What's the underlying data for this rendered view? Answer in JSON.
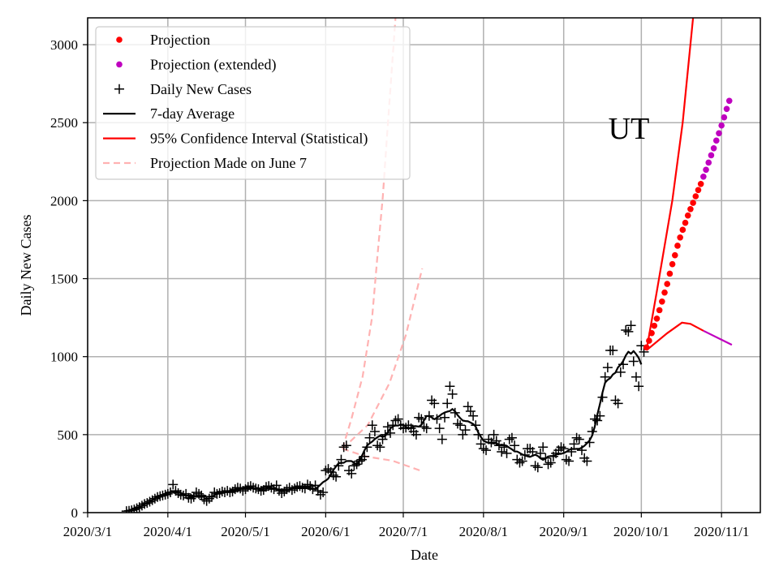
{
  "chart_data": {
    "type": "line",
    "region_label": "UT",
    "xlabel": "Date",
    "ylabel": "Daily New Cases",
    "x_axis": {
      "start_date": "2020-03-01",
      "end_day_offset": 260
    },
    "ylim": [
      0,
      3172
    ],
    "grid": true,
    "legend_placement": "top-left",
    "x_ticks": [
      {
        "label": "2020/3/1",
        "day": 0
      },
      {
        "label": "2020/4/1",
        "day": 31
      },
      {
        "label": "2020/5/1",
        "day": 61
      },
      {
        "label": "2020/6/1",
        "day": 92
      },
      {
        "label": "2020/7/1",
        "day": 122
      },
      {
        "label": "2020/8/1",
        "day": 153
      },
      {
        "label": "2020/9/1",
        "day": 184
      },
      {
        "label": "2020/10/1",
        "day": 214
      },
      {
        "label": "2020/11/1",
        "day": 245
      }
    ],
    "y_ticks": [
      {
        "label": "0",
        "value": 0
      },
      {
        "label": "500",
        "value": 500
      },
      {
        "label": "1000",
        "value": 1000
      },
      {
        "label": "1500",
        "value": 1500
      },
      {
        "label": "2000",
        "value": 2000
      },
      {
        "label": "2500",
        "value": 2500
      },
      {
        "label": "3000",
        "value": 3000
      }
    ],
    "legend": [
      {
        "label": "Projection",
        "kind": "dot",
        "color": "#ff0000"
      },
      {
        "label": "Projection (extended)",
        "kind": "dot",
        "color": "#bf00bf"
      },
      {
        "label": "Daily New Cases",
        "kind": "plus",
        "color": "#000000"
      },
      {
        "label": "7-day Average",
        "kind": "line",
        "color": "#000000"
      },
      {
        "label": "95% Confidence Interval (Statistical)",
        "kind": "line",
        "color": "#ff0000"
      },
      {
        "label": "Projection Made on June 7",
        "kind": "dash",
        "color": "#ffb2b2"
      }
    ],
    "daily_cases": {
      "first_day": 15,
      "values": [
        10,
        12,
        15,
        20,
        28,
        35,
        45,
        55,
        62,
        70,
        80,
        90,
        100,
        105,
        110,
        115,
        120,
        130,
        180,
        140,
        125,
        115,
        110,
        120,
        95,
        90,
        100,
        130,
        120,
        110,
        85,
        75,
        90,
        100,
        130,
        120,
        125,
        135,
        130,
        140,
        130,
        135,
        150,
        160,
        155,
        140,
        150,
        165,
        170,
        160,
        155,
        150,
        140,
        145,
        165,
        170,
        160,
        150,
        175,
        140,
        125,
        135,
        150,
        160,
        145,
        155,
        165,
        170,
        160,
        155,
        180,
        170,
        150,
        175,
        140,
        115,
        130,
        270,
        280,
        260,
        240,
        230,
        300,
        340,
        420,
        430,
        270,
        250,
        300,
        310,
        330,
        340,
        360,
        420,
        480,
        560,
        520,
        430,
        420,
        470,
        500,
        550,
        510,
        560,
        590,
        600,
        560,
        540,
        545,
        560,
        540,
        520,
        500,
        610,
        600,
        550,
        540,
        620,
        720,
        700,
        600,
        540,
        470,
        610,
        700,
        810,
        760,
        640,
        570,
        560,
        500,
        530,
        680,
        650,
        620,
        560,
        500,
        440,
        410,
        400,
        470,
        450,
        500,
        460,
        430,
        390,
        420,
        380,
        470,
        480,
        430,
        340,
        320,
        330,
        370,
        410,
        410,
        390,
        300,
        290,
        380,
        420,
        350,
        310,
        320,
        360,
        380,
        400,
        420,
        410,
        340,
        330,
        390,
        440,
        480,
        470,
        400,
        350,
        330,
        450,
        520,
        600,
        590,
        620,
        740,
        870,
        930,
        1040,
        1040,
        720,
        700,
        900,
        950,
        1170,
        1160,
        1200,
        970,
        870,
        810,
        1070,
        1030
      ]
    },
    "projection": {
      "first_day": 216,
      "values": [
        1059,
        1102,
        1151,
        1198,
        1244,
        1298,
        1353,
        1411,
        1466,
        1532,
        1593,
        1650,
        1711,
        1764,
        1813,
        1858,
        1905,
        1946,
        1986,
        2028,
        2068,
        2107
      ],
      "color": "#ff0000"
    },
    "projection_extended": {
      "first_day": 238,
      "values": [
        2154,
        2198,
        2244,
        2291,
        2336,
        2385,
        2432,
        2482,
        2534,
        2588,
        2640
      ],
      "color": "#bf00bf"
    },
    "ci_upper": {
      "days": [
        216,
        220,
        226,
        230,
        234,
        236
      ],
      "values": [
        1041,
        1420,
        2003,
        2500,
        3172,
        3500
      ],
      "color": "#ff0000"
    },
    "ci_lower": {
      "days": [
        216,
        224,
        229.7,
        233,
        238
      ],
      "values": [
        1041,
        1150,
        1218,
        1210,
        1166
      ],
      "color": "#ff0000"
    },
    "ci_lower_extended": {
      "days": [
        238,
        249
      ],
      "values": [
        1166,
        1076
      ],
      "color": "#bf00bf"
    },
    "june7_projection": {
      "color": "#ffb2b2",
      "upper": {
        "days": [
          98.5,
          102,
          106.3,
          110,
          112,
          114.1,
          115.7,
          119
        ],
        "values": [
          410,
          603,
          873,
          1258,
          1643,
          2028,
          2413,
          3172
        ]
      },
      "middle": {
        "days": [
          98.5,
          108.3,
          116.7,
          123,
          129.3
        ],
        "values": [
          410,
          562,
          832,
          1139,
          1565
        ]
      },
      "lower": {
        "days": [
          98.5,
          107.3,
          117.8,
          129.3
        ],
        "values": [
          410,
          361,
          333,
          265
        ]
      }
    }
  }
}
